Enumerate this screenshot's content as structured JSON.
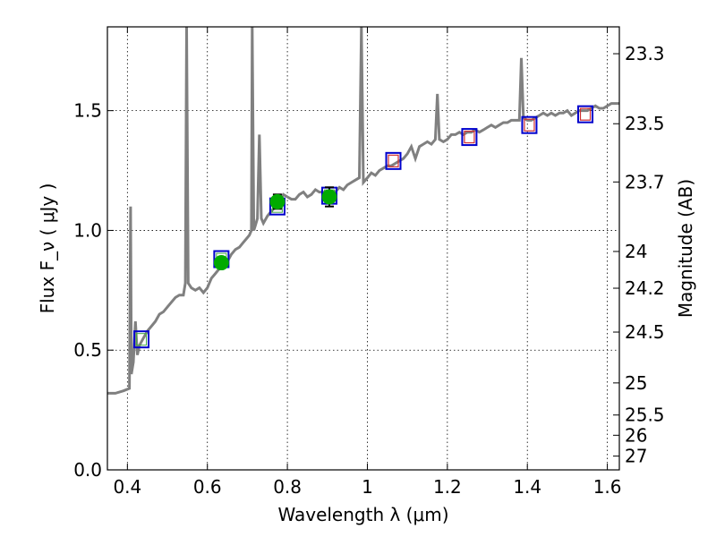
{
  "chart_data": {
    "type": "scatter",
    "xlabel": "Wavelength  λ (μm)",
    "ylabel": "Flux  F_ν  ( μJy )",
    "ylabel_right": "Magnitude (AB)",
    "xlim": [
      0.35,
      1.63
    ],
    "ylim": [
      0.0,
      1.85
    ],
    "grid": true,
    "x_ticks": [
      {
        "value": 0.4,
        "label": "0.4"
      },
      {
        "value": 0.6,
        "label": "0.6"
      },
      {
        "value": 0.8,
        "label": "0.8"
      },
      {
        "value": 1.0,
        "label": "1"
      },
      {
        "value": 1.2,
        "label": "1.2"
      },
      {
        "value": 1.4,
        "label": "1.4"
      },
      {
        "value": 1.6,
        "label": "1.6"
      }
    ],
    "y_ticks": [
      {
        "value": 0.0,
        "label": "0.0"
      },
      {
        "value": 0.5,
        "label": "0.5"
      },
      {
        "value": 1.0,
        "label": "1.0"
      },
      {
        "value": 1.5,
        "label": "1.5"
      }
    ],
    "mag_ticks": [
      {
        "value": 23.3,
        "label": "23.3"
      },
      {
        "value": 23.5,
        "label": "23.5"
      },
      {
        "value": 23.7,
        "label": "23.7"
      },
      {
        "value": 24.0,
        "label": "24"
      },
      {
        "value": 24.2,
        "label": "24.2"
      },
      {
        "value": 24.5,
        "label": "24.5"
      },
      {
        "value": 25.0,
        "label": "25"
      },
      {
        "value": 25.5,
        "label": "25.5"
      },
      {
        "value": 26.0,
        "label": "26"
      },
      {
        "value": 27.0,
        "label": "27"
      }
    ],
    "series": [
      {
        "kind": "line",
        "color": "#808080",
        "points": [
          [
            0.35,
            0.32
          ],
          [
            0.37,
            0.32
          ],
          [
            0.39,
            0.33
          ],
          [
            0.405,
            0.34
          ],
          [
            0.408,
            1.1
          ],
          [
            0.41,
            0.4
          ],
          [
            0.415,
            0.45
          ],
          [
            0.42,
            0.62
          ],
          [
            0.425,
            0.48
          ],
          [
            0.43,
            0.52
          ],
          [
            0.44,
            0.55
          ],
          [
            0.45,
            0.58
          ],
          [
            0.46,
            0.6
          ],
          [
            0.47,
            0.62
          ],
          [
            0.48,
            0.65
          ],
          [
            0.49,
            0.66
          ],
          [
            0.5,
            0.68
          ],
          [
            0.51,
            0.7
          ],
          [
            0.52,
            0.72
          ],
          [
            0.53,
            0.73
          ],
          [
            0.54,
            0.73
          ],
          [
            0.545,
            0.78
          ],
          [
            0.548,
            1.85
          ],
          [
            0.552,
            0.78
          ],
          [
            0.56,
            0.76
          ],
          [
            0.57,
            0.75
          ],
          [
            0.58,
            0.76
          ],
          [
            0.59,
            0.74
          ],
          [
            0.6,
            0.76
          ],
          [
            0.61,
            0.8
          ],
          [
            0.62,
            0.82
          ],
          [
            0.63,
            0.84
          ],
          [
            0.64,
            0.85
          ],
          [
            0.65,
            0.87
          ],
          [
            0.66,
            0.9
          ],
          [
            0.67,
            0.92
          ],
          [
            0.68,
            0.93
          ],
          [
            0.69,
            0.95
          ],
          [
            0.7,
            0.97
          ],
          [
            0.705,
            0.98
          ],
          [
            0.71,
            1.0
          ],
          [
            0.712,
            1.85
          ],
          [
            0.716,
            1.0
          ],
          [
            0.72,
            1.02
          ],
          [
            0.725,
            1.05
          ],
          [
            0.73,
            1.4
          ],
          [
            0.735,
            1.05
          ],
          [
            0.74,
            1.03
          ],
          [
            0.75,
            1.06
          ],
          [
            0.76,
            1.08
          ],
          [
            0.77,
            1.1
          ],
          [
            0.78,
            1.12
          ],
          [
            0.79,
            1.15
          ],
          [
            0.8,
            1.14
          ],
          [
            0.81,
            1.13
          ],
          [
            0.82,
            1.13
          ],
          [
            0.83,
            1.15
          ],
          [
            0.84,
            1.16
          ],
          [
            0.85,
            1.14
          ],
          [
            0.86,
            1.15
          ],
          [
            0.87,
            1.17
          ],
          [
            0.88,
            1.16
          ],
          [
            0.89,
            1.16
          ],
          [
            0.9,
            1.15
          ],
          [
            0.91,
            1.14
          ],
          [
            0.92,
            1.16
          ],
          [
            0.93,
            1.18
          ],
          [
            0.94,
            1.17
          ],
          [
            0.95,
            1.19
          ],
          [
            0.96,
            1.2
          ],
          [
            0.97,
            1.21
          ],
          [
            0.98,
            1.22
          ],
          [
            0.985,
            1.85
          ],
          [
            0.99,
            1.2
          ],
          [
            1.0,
            1.22
          ],
          [
            1.01,
            1.24
          ],
          [
            1.02,
            1.23
          ],
          [
            1.03,
            1.25
          ],
          [
            1.04,
            1.26
          ],
          [
            1.05,
            1.27
          ],
          [
            1.06,
            1.27
          ],
          [
            1.07,
            1.28
          ],
          [
            1.08,
            1.29
          ],
          [
            1.09,
            1.3
          ],
          [
            1.1,
            1.32
          ],
          [
            1.11,
            1.35
          ],
          [
            1.12,
            1.3
          ],
          [
            1.13,
            1.35
          ],
          [
            1.14,
            1.36
          ],
          [
            1.15,
            1.37
          ],
          [
            1.16,
            1.36
          ],
          [
            1.17,
            1.38
          ],
          [
            1.175,
            1.57
          ],
          [
            1.18,
            1.38
          ],
          [
            1.19,
            1.37
          ],
          [
            1.2,
            1.38
          ],
          [
            1.21,
            1.4
          ],
          [
            1.22,
            1.4
          ],
          [
            1.23,
            1.41
          ],
          [
            1.24,
            1.4
          ],
          [
            1.25,
            1.41
          ],
          [
            1.26,
            1.41
          ],
          [
            1.27,
            1.42
          ],
          [
            1.28,
            1.41
          ],
          [
            1.29,
            1.42
          ],
          [
            1.3,
            1.43
          ],
          [
            1.31,
            1.44
          ],
          [
            1.32,
            1.43
          ],
          [
            1.33,
            1.44
          ],
          [
            1.34,
            1.45
          ],
          [
            1.35,
            1.45
          ],
          [
            1.36,
            1.46
          ],
          [
            1.37,
            1.46
          ],
          [
            1.38,
            1.46
          ],
          [
            1.385,
            1.72
          ],
          [
            1.39,
            1.47
          ],
          [
            1.4,
            1.46
          ],
          [
            1.41,
            1.46
          ],
          [
            1.42,
            1.47
          ],
          [
            1.43,
            1.48
          ],
          [
            1.44,
            1.49
          ],
          [
            1.45,
            1.48
          ],
          [
            1.46,
            1.49
          ],
          [
            1.47,
            1.48
          ],
          [
            1.48,
            1.49
          ],
          [
            1.49,
            1.49
          ],
          [
            1.5,
            1.5
          ],
          [
            1.51,
            1.48
          ],
          [
            1.52,
            1.49
          ],
          [
            1.53,
            1.5
          ],
          [
            1.54,
            1.5
          ],
          [
            1.55,
            1.5
          ],
          [
            1.56,
            1.51
          ],
          [
            1.57,
            1.52
          ],
          [
            1.58,
            1.51
          ],
          [
            1.59,
            1.51
          ],
          [
            1.6,
            1.52
          ],
          [
            1.61,
            1.53
          ],
          [
            1.62,
            1.53
          ],
          [
            1.63,
            1.53
          ]
        ]
      },
      {
        "kind": "points",
        "marker": "square",
        "color": "#0000cc",
        "points": [
          [
            0.435,
            0.545
          ],
          [
            0.635,
            0.88
          ],
          [
            0.775,
            1.1
          ],
          [
            0.905,
            1.145
          ]
        ]
      },
      {
        "kind": "points",
        "marker": "square-dual",
        "color": "#0000cc",
        "inner_color": "#d03030",
        "points": [
          [
            1.065,
            1.29
          ],
          [
            1.255,
            1.39
          ],
          [
            1.405,
            1.44
          ],
          [
            1.545,
            1.485
          ]
        ]
      },
      {
        "kind": "points",
        "marker": "circle",
        "color": "#00aa00",
        "points": [
          {
            "x": 0.635,
            "y": 0.865,
            "err": 0.02
          },
          {
            "x": 0.775,
            "y": 1.12,
            "err": 0.03
          },
          {
            "x": 0.905,
            "y": 1.14,
            "err": 0.04
          }
        ]
      }
    ]
  }
}
